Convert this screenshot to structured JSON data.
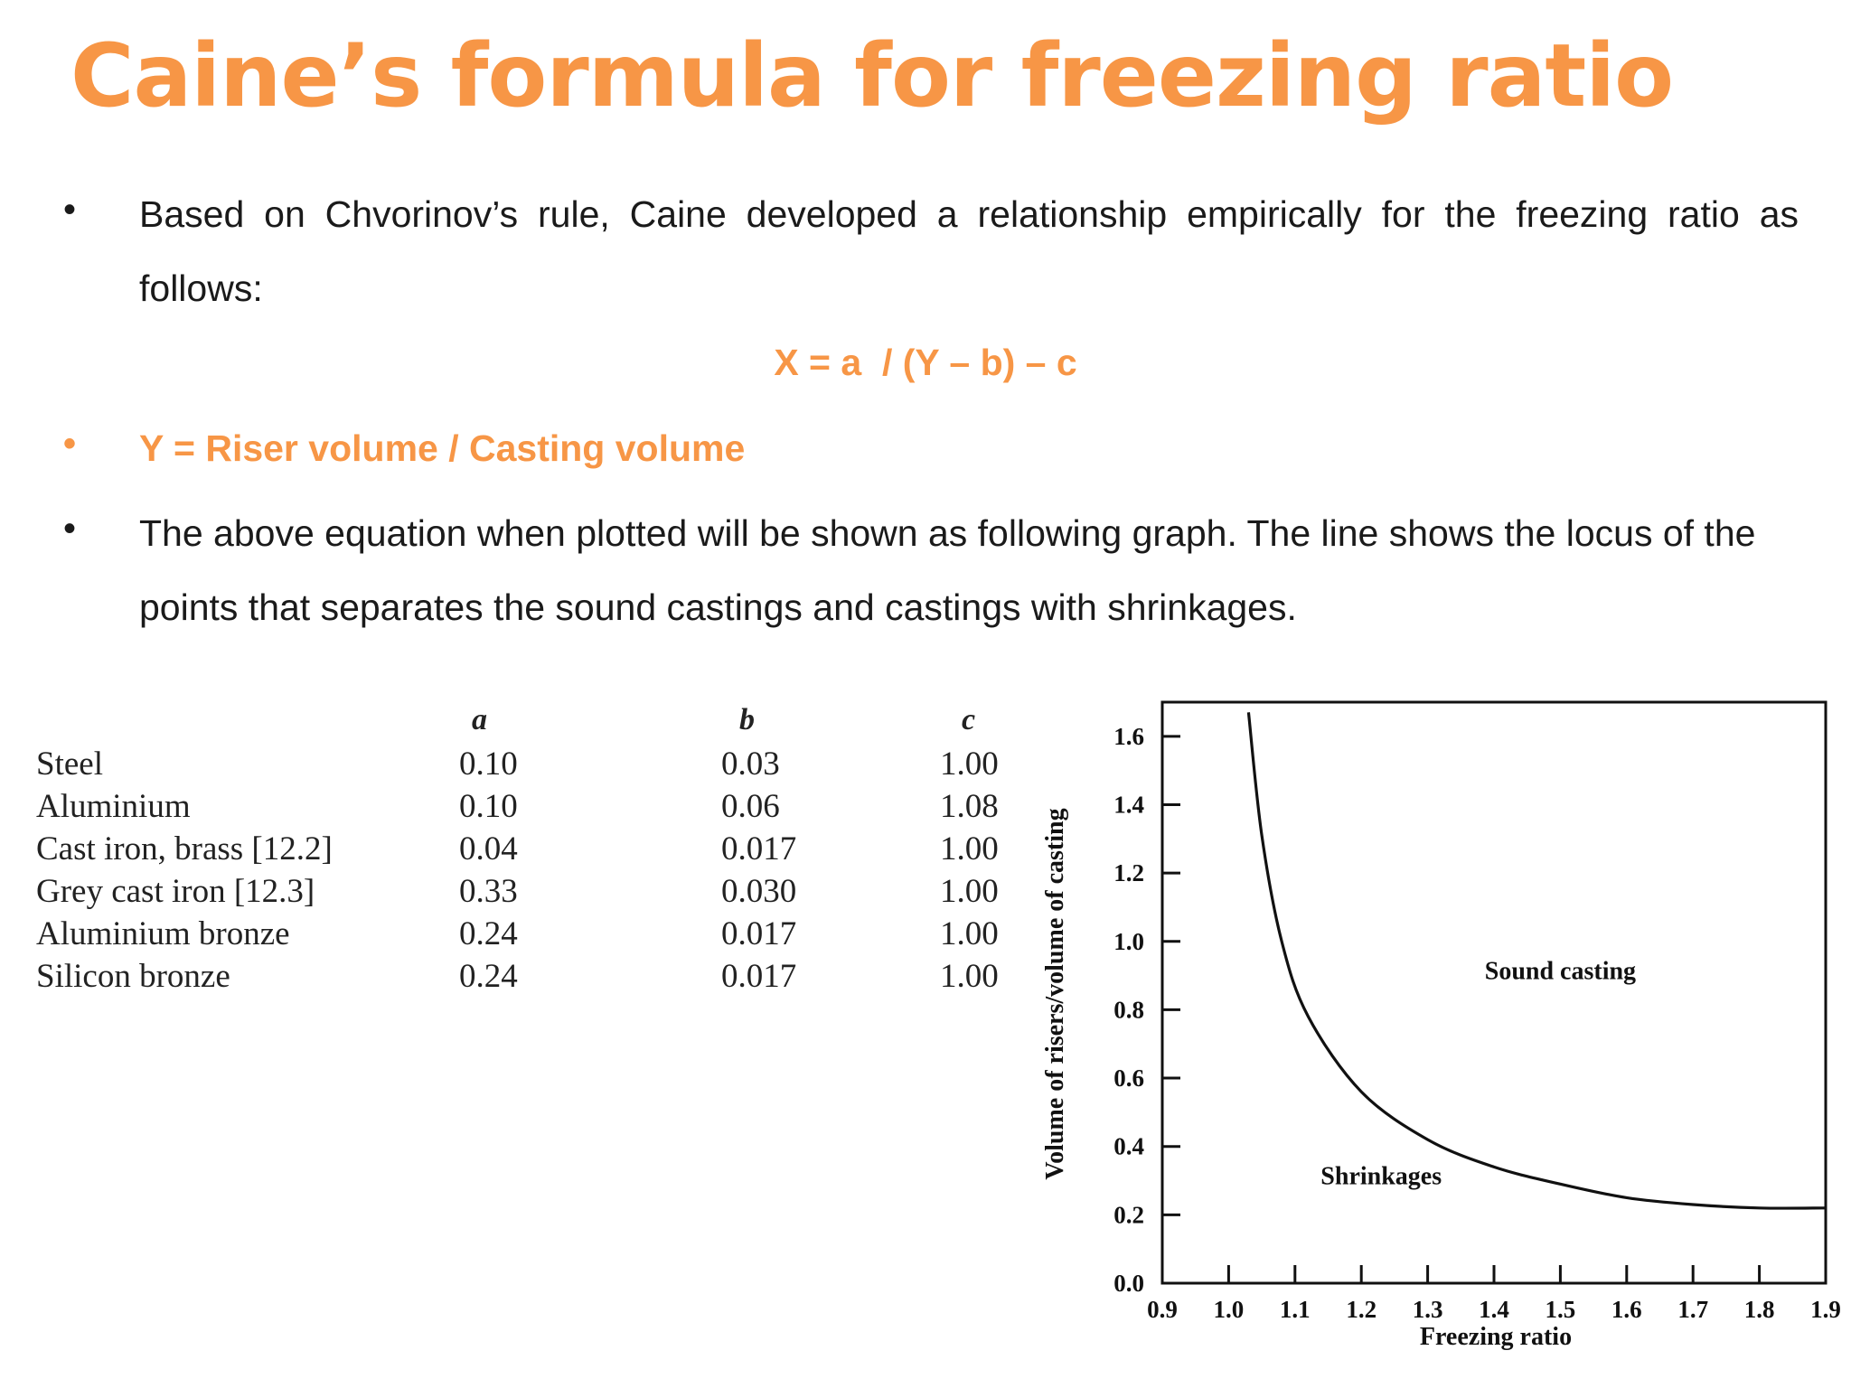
{
  "slide": {
    "title": "Caine’s formula for freezing ratio",
    "bullet1": "Based on Chvorinov’s rule, Caine developed a relationship empirically for the freezing ratio as follows:",
    "formula": "X = a  / (Y – b) – c",
    "bullet2": "Y = Riser volume / Casting volume",
    "bullet3": "The above equation when plotted will be shown as following graph. The line shows the locus of the points that separates the sound castings and castings with shrinkages.",
    "bullet_symbol": "•",
    "accent_color": "#f79646"
  },
  "table": {
    "headers": [
      "a",
      "b",
      "c"
    ],
    "rows": [
      {
        "material": "Steel",
        "a": "0.10",
        "b": "0.03",
        "c": "1.00"
      },
      {
        "material": "Aluminium",
        "a": "0.10",
        "b": "0.06",
        "c": "1.08"
      },
      {
        "material": "Cast iron, brass [12.2]",
        "a": "0.04",
        "b": "0.017",
        "c": "1.00"
      },
      {
        "material": "Grey cast iron [12.3]",
        "a": "0.33",
        "b": "0.030",
        "c": "1.00"
      },
      {
        "material": "Aluminium bronze",
        "a": "0.24",
        "b": "0.017",
        "c": "1.00"
      },
      {
        "material": "Silicon bronze",
        "a": "0.24",
        "b": "0.017",
        "c": "1.00"
      }
    ]
  },
  "chart_data": {
    "type": "line",
    "title": "",
    "xlabel": "Freezing ratio",
    "ylabel": "Volume of risers/volume of casting",
    "xlim": [
      0.9,
      1.9
    ],
    "ylim": [
      0.0,
      1.7
    ],
    "x_ticks": [
      "0.9",
      "1.0",
      "1.1",
      "1.2",
      "1.3",
      "1.4",
      "1.5",
      "1.6",
      "1.7",
      "1.8",
      "1.9"
    ],
    "y_ticks": [
      "0.0",
      "0.2",
      "0.4",
      "0.6",
      "0.8",
      "1.0",
      "1.2",
      "1.4",
      "1.6"
    ],
    "annotations": [
      {
        "text": "Sound casting",
        "x": 1.5,
        "y": 0.89
      },
      {
        "text": "Shrinkages",
        "x": 1.23,
        "y": 0.29
      }
    ],
    "series": [
      {
        "x": [
          1.03,
          1.05,
          1.08,
          1.12,
          1.2,
          1.3,
          1.4,
          1.5,
          1.6,
          1.7,
          1.8,
          1.9
        ],
        "values": [
          1.67,
          1.31,
          1.0,
          0.78,
          0.56,
          0.42,
          0.34,
          0.29,
          0.25,
          0.23,
          0.22,
          0.22
        ]
      }
    ],
    "grid": false
  }
}
